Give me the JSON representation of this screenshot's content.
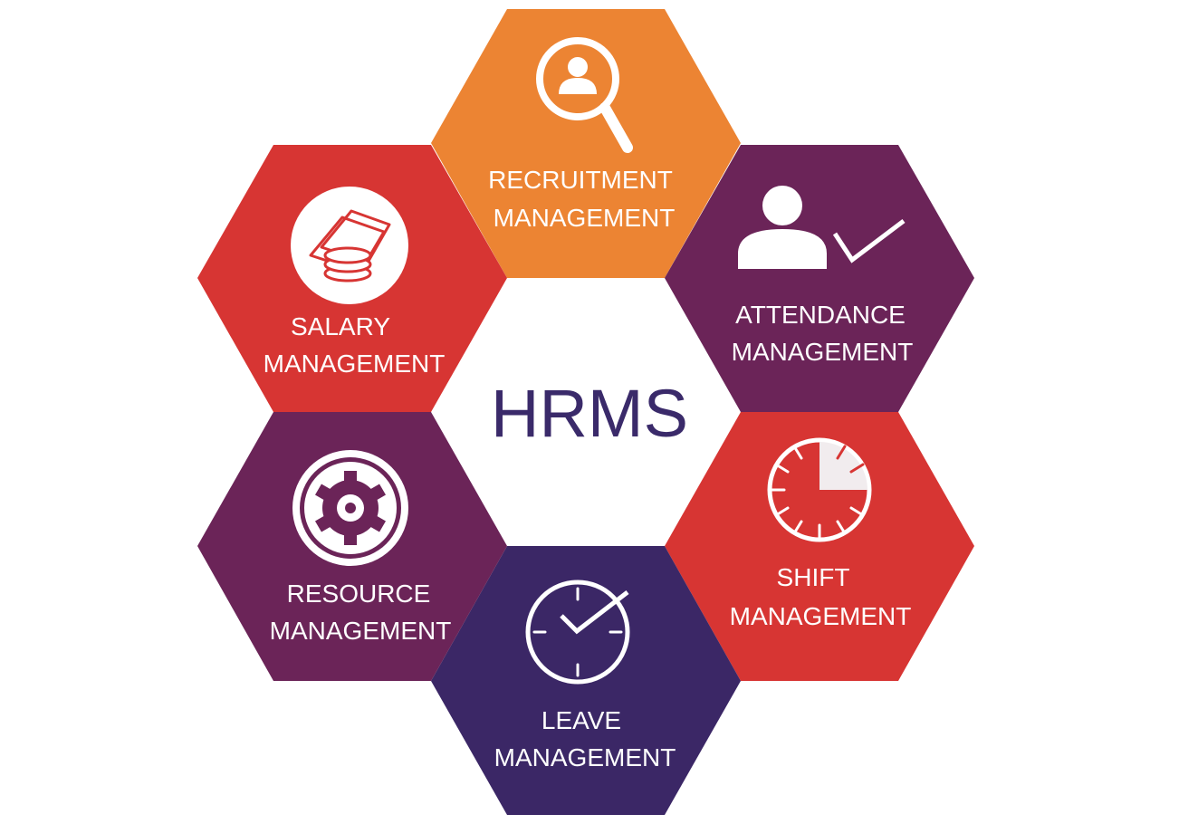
{
  "title": "HRMS",
  "colors": {
    "title": "#3a2a6a",
    "orange": "#ec8433",
    "red": "#d73533",
    "purple": "#6b2458",
    "indigo": "#3b2766",
    "center": "#ffffff"
  },
  "modules": [
    {
      "id": "recruitment",
      "line1": "RECRUITMENT",
      "line2": "MANAGEMENT",
      "icon": "magnifier-person-icon",
      "color": "#ec8433"
    },
    {
      "id": "attendance",
      "line1": "ATTENDANCE",
      "line2": "MANAGEMENT",
      "icon": "person-check-icon",
      "color": "#6b2458"
    },
    {
      "id": "shift",
      "line1": "SHIFT",
      "line2": "MANAGEMENT",
      "icon": "clock-dial-icon",
      "color": "#d73533"
    },
    {
      "id": "leave",
      "line1": "LEAVE",
      "line2": "MANAGEMENT",
      "icon": "clock-check-icon",
      "color": "#3b2766"
    },
    {
      "id": "resource",
      "line1": "RESOURCE",
      "line2": "MANAGEMENT",
      "icon": "gear-icon",
      "color": "#6b2458"
    },
    {
      "id": "salary",
      "line1": "SALARY",
      "line2": "MANAGEMENT",
      "icon": "coins-icon",
      "color": "#d73533"
    }
  ]
}
